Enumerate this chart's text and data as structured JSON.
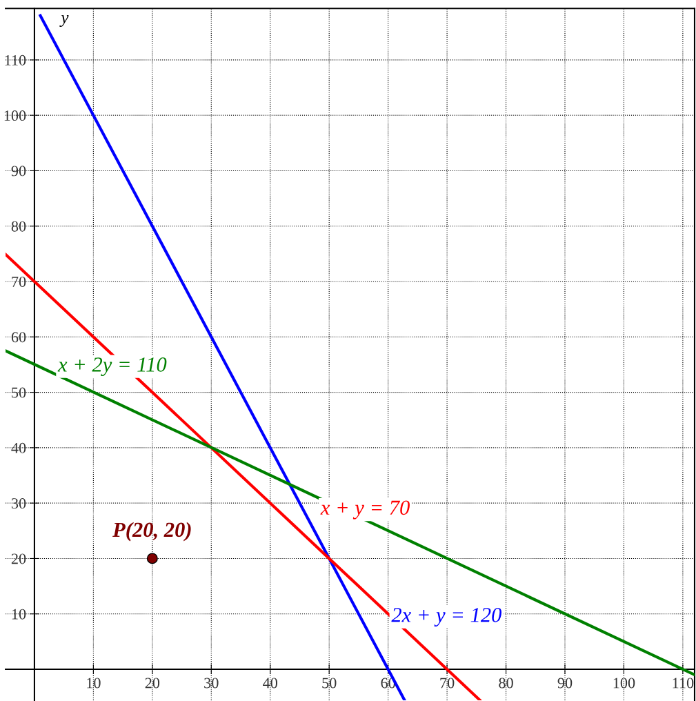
{
  "chart_data": {
    "type": "line",
    "ylabel": "y",
    "xlim": [
      -4.9,
      112
    ],
    "ylim": [
      -5.6,
      119.3
    ],
    "xticks": [
      10,
      20,
      30,
      40,
      50,
      60,
      70,
      80,
      90,
      100,
      110
    ],
    "yticks": [
      10,
      20,
      30,
      40,
      50,
      60,
      70,
      80,
      90,
      100,
      110
    ],
    "grid": true,
    "line_style": "solid",
    "marker": "none",
    "series": [
      {
        "name": "2x + y = 120",
        "color": "#0000ff",
        "x": [
          1,
          62.8
        ],
        "values": [
          118,
          -5.6
        ]
      },
      {
        "name": "x + y = 70",
        "color": "#ff0000",
        "x": [
          -4.9,
          75.6
        ],
        "values": [
          74.9,
          -5.6
        ]
      },
      {
        "name": "x + 2y = 110",
        "color": "#008000",
        "x": [
          -4.9,
          112
        ],
        "values": [
          57.5,
          -1
        ]
      },
      {
        "name": "P(20, 20)",
        "type": "scatter",
        "color": "#800000",
        "marker": "circle",
        "x": [
          20
        ],
        "values": [
          20
        ]
      }
    ]
  }
}
